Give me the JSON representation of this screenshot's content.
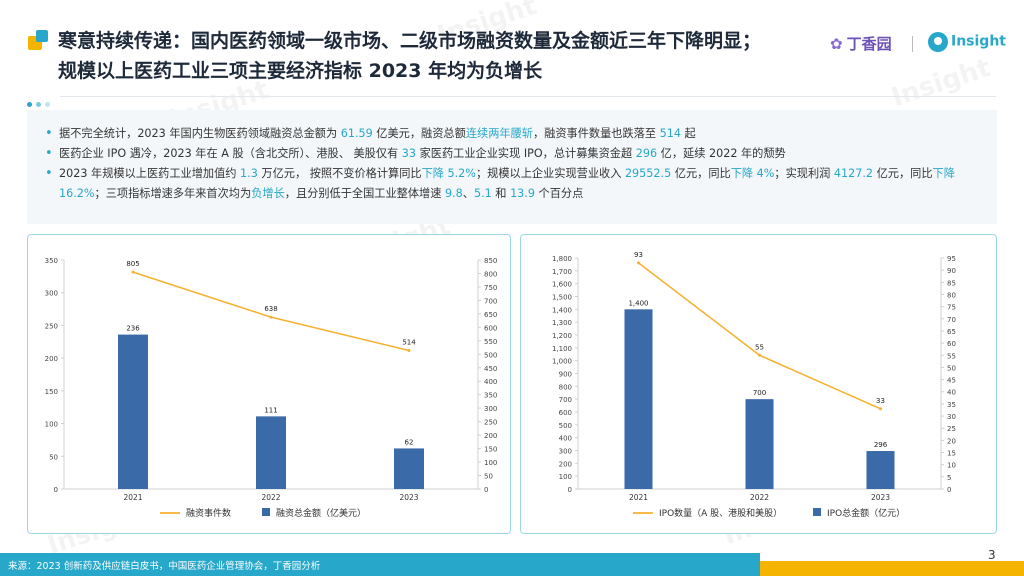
{
  "header": {
    "title_line1": "寒意持续传递：国内医药领域一级市场、二级市场融资数量及金额近三年下降明显；",
    "title_line2": "规模以上医药工业三项主要经济指标 2023 年均为负增长",
    "brand_dingxiang": "丁香园",
    "brand_insight": "Insight"
  },
  "watermark": "Insight",
  "summary": [
    [
      {
        "t": "据不完全统计，2023 年国内生物医药领域融资总金额为 "
      },
      {
        "t": "61.59",
        "h": true
      },
      {
        "t": " 亿美元，融资总额"
      },
      {
        "t": "连续两年腰斩",
        "h": true
      },
      {
        "t": "，融资事件数量也跌落至 "
      },
      {
        "t": "514",
        "h": true
      },
      {
        "t": " 起"
      }
    ],
    [
      {
        "t": "医药企业 IPO 遇冷，2023 年在 A 股（含北交所）、港股、 美股仅有 "
      },
      {
        "t": "33",
        "h": true
      },
      {
        "t": " 家医药工业企业实现 IPO，总计募集资金超 "
      },
      {
        "t": "296",
        "h": true
      },
      {
        "t": " 亿，延续 2022 年的颓势"
      }
    ],
    [
      {
        "t": "2023 年规模以上医药工业增加值约 "
      },
      {
        "t": "1.3",
        "h": true
      },
      {
        "t": " 万亿元， 按照不变价格计算同比"
      },
      {
        "t": "下降 5.2%",
        "h": true
      },
      {
        "t": "；规模以上企业实现营业收入 "
      },
      {
        "t": "29552.5",
        "h": true
      },
      {
        "t": " 亿元，同比"
      },
      {
        "t": "下降 4%",
        "h": true
      },
      {
        "t": "；实现利润 "
      },
      {
        "t": "4127.2",
        "h": true
      },
      {
        "t": " 亿元，同比"
      },
      {
        "t": "下降 16.2%",
        "h": true
      },
      {
        "t": "；三项指标增速多年来首次均为"
      },
      {
        "t": "负增长",
        "h": true
      },
      {
        "t": "，且分别低于全国工业整体增速 "
      },
      {
        "t": "9.8",
        "h": true
      },
      {
        "t": "、"
      },
      {
        "t": "5.1",
        "h": true
      },
      {
        "t": " 和 "
      },
      {
        "t": "13.9",
        "h": true
      },
      {
        "t": " 个百分点"
      }
    ]
  ],
  "chart_data": [
    {
      "type": "bar+line",
      "categories": [
        "2021",
        "2022",
        "2023"
      ],
      "bar_series": {
        "name": "融资总金额（亿美元）",
        "values": [
          236,
          111,
          62
        ],
        "color": "#3a6aa8"
      },
      "line_series": {
        "name": "融资事件数",
        "values": [
          805,
          638,
          514
        ],
        "color": "#f5b12e"
      },
      "y_left": {
        "min": 0,
        "max": 350,
        "step": 50
      },
      "y_right": {
        "min": 0,
        "max": 850,
        "step": 50
      },
      "y_left_ticks": [
        "0",
        "50",
        "100",
        "150",
        "200",
        "250",
        "300",
        "350"
      ],
      "y_right_ticks": [
        "0",
        "50",
        "100",
        "150",
        "200",
        "250",
        "300",
        "350",
        "400",
        "450",
        "500",
        "550",
        "600",
        "650",
        "700",
        "750",
        "800",
        "850"
      ],
      "legend_position": "bottom"
    },
    {
      "type": "bar+line",
      "categories": [
        "2021",
        "2022",
        "2023"
      ],
      "bar_series": {
        "name": "IPO总金额（亿元）",
        "values": [
          1400,
          700,
          296
        ],
        "color": "#3a6aa8"
      },
      "line_series": {
        "name": "IPO数量（A 股、港股和美股）",
        "values": [
          93,
          55,
          33
        ],
        "color": "#f5b12e"
      },
      "y_left": {
        "min": 0,
        "max": 1800,
        "step": 100
      },
      "y_right": {
        "min": 0,
        "max": 95,
        "step": 5
      },
      "y_left_ticks": [
        "0",
        "100",
        "200",
        "300",
        "400",
        "500",
        "600",
        "700",
        "800",
        "900",
        "1,000",
        "1,100",
        "1,200",
        "1,300",
        "1,400",
        "1,500",
        "1,600",
        "1,700",
        "1,800"
      ],
      "y_right_ticks": [
        "0",
        "5",
        "10",
        "15",
        "20",
        "25",
        "30",
        "35",
        "40",
        "45",
        "50",
        "55",
        "60",
        "65",
        "70",
        "75",
        "80",
        "85",
        "90",
        "95"
      ],
      "bar_labels": [
        "1,400",
        "700",
        "296"
      ],
      "legend_position": "bottom"
    }
  ],
  "footer": {
    "source": "来源：2023 创新药及供应链白皮书，中国医药企业管理协会，丁香园分析",
    "page": "3"
  },
  "colors": {
    "accent": "#27a7c9",
    "bar": "#3a6aa8",
    "line": "#f5b12e",
    "yellow": "#f5b400"
  }
}
